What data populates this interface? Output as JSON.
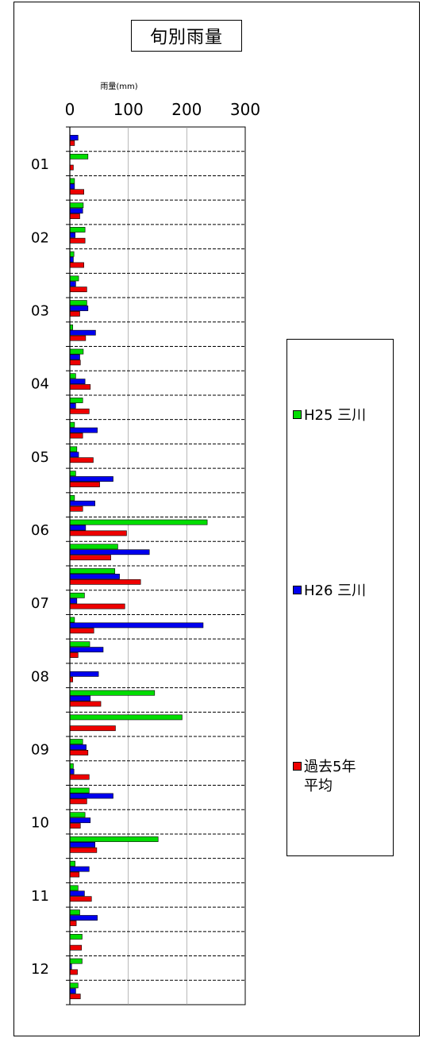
{
  "chart_data": {
    "type": "bar",
    "orientation": "horizontal",
    "title": "旬別雨量",
    "xlabel": "雨量(mm)",
    "xlim": [
      0,
      300
    ],
    "xticks": [
      0,
      100,
      200,
      300
    ],
    "month_labels": [
      "01",
      "02",
      "03",
      "04",
      "05",
      "06",
      "07",
      "08",
      "09",
      "10",
      "11",
      "12"
    ],
    "periods_per_month": 3,
    "grid": "vertical gridlines at 100 and 200; dashed separators between periods",
    "legend_position": "right",
    "series": [
      {
        "name": "H25 三川",
        "color": "#00dd00",
        "values": [
          0,
          31,
          8,
          23,
          26,
          7,
          15,
          29,
          5,
          23,
          10,
          22,
          8,
          12,
          10,
          8,
          235,
          82,
          77,
          25,
          8,
          34,
          0,
          145,
          192,
          22,
          6,
          33,
          26,
          151,
          9,
          14,
          17,
          21,
          21,
          14
        ]
      },
      {
        "name": "H26 三川",
        "color": "#0000ee",
        "values": [
          14,
          0,
          8,
          22,
          9,
          6,
          10,
          31,
          44,
          17,
          26,
          10,
          47,
          15,
          74,
          43,
          27,
          136,
          85,
          12,
          228,
          57,
          49,
          35,
          0,
          28,
          7,
          74,
          35,
          43,
          33,
          25,
          47,
          0,
          3,
          10
        ]
      },
      {
        "name": "過去5年\n平均",
        "color": "#ee0000",
        "values": [
          8,
          6,
          24,
          17,
          26,
          24,
          29,
          17,
          27,
          18,
          35,
          33,
          22,
          40,
          51,
          22,
          97,
          70,
          121,
          94,
          41,
          14,
          5,
          53,
          78,
          31,
          33,
          29,
          18,
          46,
          16,
          37,
          11,
          20,
          13,
          18
        ]
      }
    ]
  }
}
